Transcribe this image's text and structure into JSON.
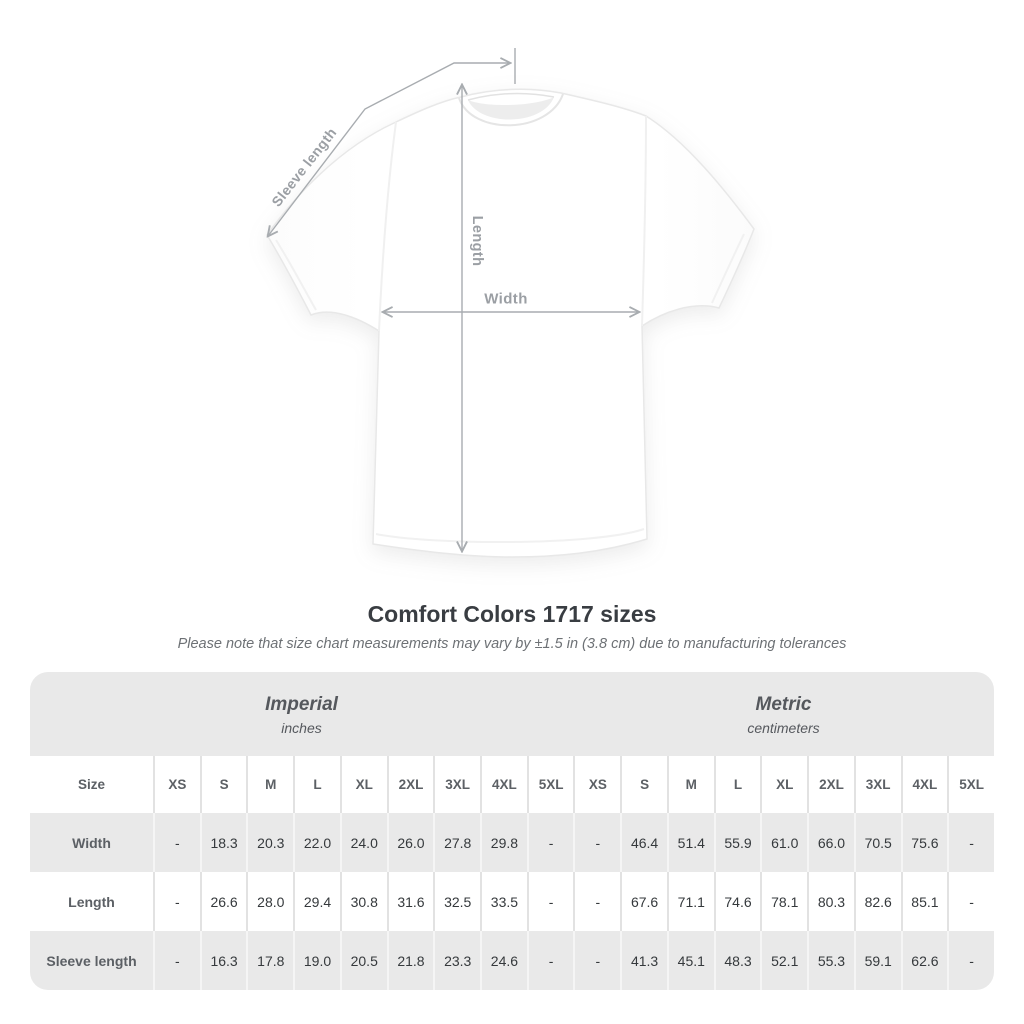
{
  "diagram": {
    "sleeve_length_label": "Sleeve length",
    "length_label": "Length",
    "width_label": "Width"
  },
  "heading": {
    "title": "Comfort Colors 1717 sizes",
    "subtitle": "Please note that size chart measurements may vary by ±1.5 in (3.8 cm) due to manufacturing tolerances"
  },
  "size_chart": {
    "unit_sections": [
      {
        "name": "Imperial",
        "unit": "inches"
      },
      {
        "name": "Metric",
        "unit": "centimeters"
      }
    ],
    "header": {
      "size_label": "Size",
      "sizes": [
        "XS",
        "S",
        "M",
        "L",
        "XL",
        "2XL",
        "3XL",
        "4XL",
        "5XL"
      ]
    },
    "rows": [
      {
        "label": "Width",
        "imperial": [
          "-",
          "18.3",
          "20.3",
          "22.0",
          "24.0",
          "26.0",
          "27.8",
          "29.8",
          "-"
        ],
        "metric": [
          "-",
          "46.4",
          "51.4",
          "55.9",
          "61.0",
          "66.0",
          "70.5",
          "75.6",
          "-"
        ]
      },
      {
        "label": "Length",
        "imperial": [
          "-",
          "26.6",
          "28.0",
          "29.4",
          "30.8",
          "31.6",
          "32.5",
          "33.5",
          "-"
        ],
        "metric": [
          "-",
          "67.6",
          "71.1",
          "74.6",
          "78.1",
          "80.3",
          "82.6",
          "85.1",
          "-"
        ]
      },
      {
        "label": "Sleeve length",
        "imperial": [
          "-",
          "16.3",
          "17.8",
          "19.0",
          "20.5",
          "21.8",
          "23.3",
          "24.6",
          "-"
        ],
        "metric": [
          "-",
          "41.3",
          "45.1",
          "48.3",
          "52.1",
          "55.3",
          "59.1",
          "62.6",
          "-"
        ]
      }
    ]
  },
  "colors": {
    "band_gray": "#e9e9e9",
    "text_dark": "#35393c",
    "text_label": "#5c6065",
    "annotation_text": "#9b9fa4",
    "arrow_gray": "#a8acb0"
  }
}
